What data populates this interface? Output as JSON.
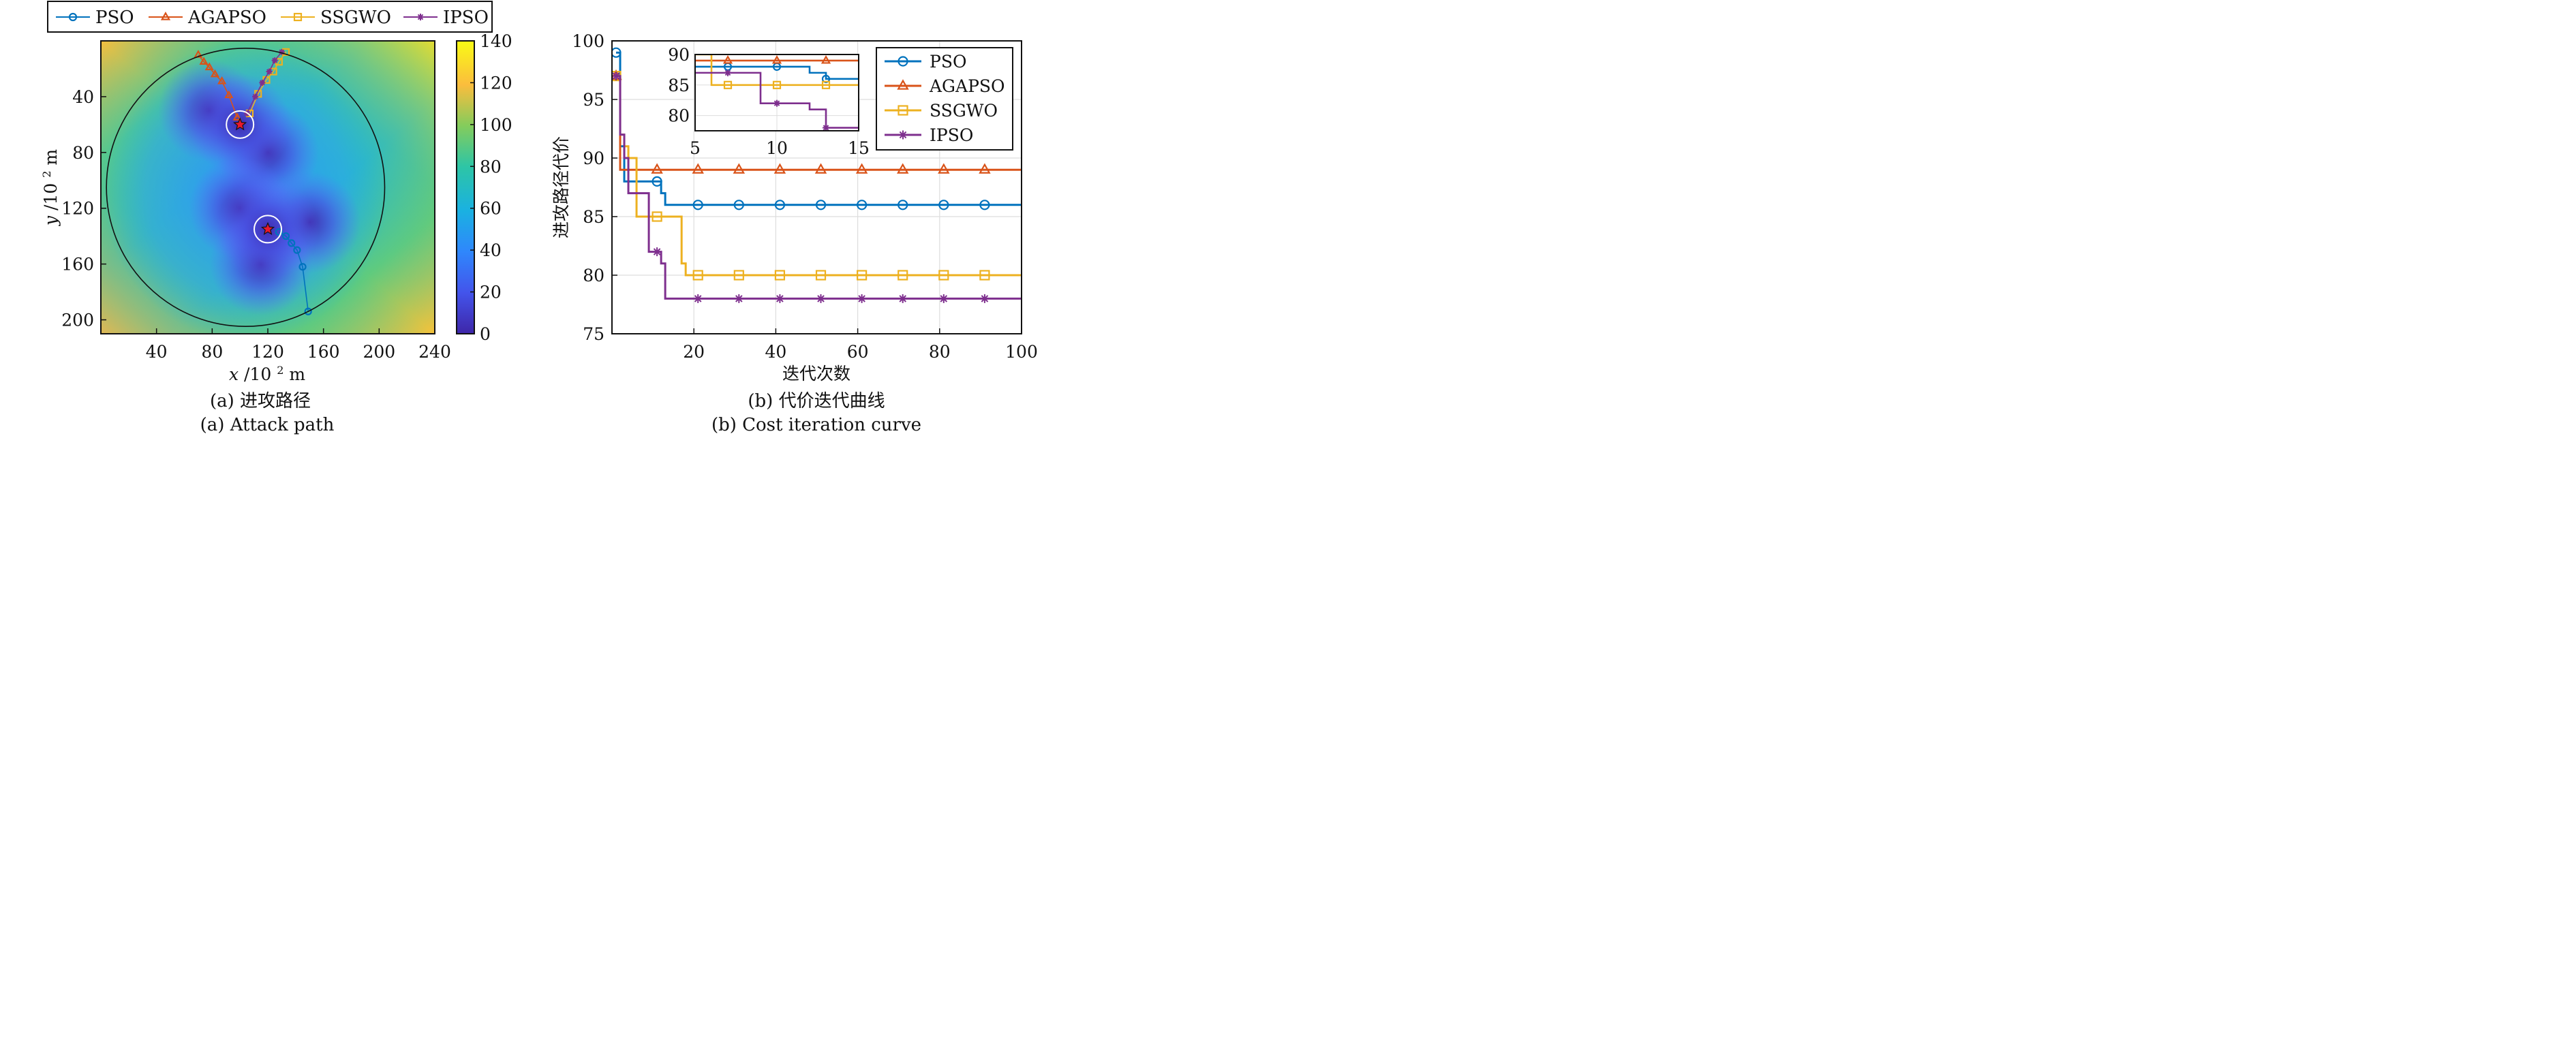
{
  "colors": {
    "PSO": "#0072BD",
    "AGAPSO": "#D95319",
    "SSGWO": "#EDB120",
    "IPSO": "#7E2F8E",
    "threat": "#e8192c"
  },
  "legend_top": [
    "PSO",
    "AGAPSO",
    "SSGWO",
    "IPSO"
  ],
  "captions": {
    "a_zh": "(a) 进攻路径",
    "a_en": "(a) Attack path",
    "b_zh": "(b) 代价迭代曲线",
    "b_en": "(b) Cost iteration curve"
  },
  "chart_data": [
    {
      "type": "heatmap",
      "xlabel_var": "x",
      "ylabel_var": "y",
      "unit_prefix": "/10",
      "unit_sup": "2",
      "unit": " m",
      "xlim": [
        0,
        240
      ],
      "ylim": [
        210,
        0
      ],
      "xticks": [
        40,
        80,
        120,
        160,
        200,
        240
      ],
      "yticks": [
        40,
        80,
        120,
        160,
        200
      ],
      "colorbar_ticks": [
        0,
        20,
        40,
        60,
        80,
        100,
        120,
        140
      ],
      "colorbar_range": [
        0,
        140
      ],
      "boundary_circle": {
        "cx": 104,
        "cy": 105,
        "r": 100
      },
      "targets": [
        {
          "x": 100,
          "y": 60
        },
        {
          "x": 120,
          "y": 135
        }
      ],
      "threat_centers": [
        [
          78,
          50
        ],
        [
          120,
          80
        ],
        [
          100,
          120
        ],
        [
          150,
          130
        ],
        [
          115,
          160
        ],
        [
          100,
          60
        ],
        [
          120,
          135
        ]
      ],
      "paths": [
        {
          "name": "PSO",
          "marker": "circle",
          "points": [
            [
              149,
              194
            ],
            [
              145,
              162
            ],
            [
              141,
              150
            ],
            [
              137,
              145
            ],
            [
              133,
              140
            ],
            [
              128,
              137
            ]
          ]
        },
        {
          "name": "AGAPSO",
          "marker": "triangle",
          "points": [
            [
              70,
              10
            ],
            [
              74,
              15
            ],
            [
              78,
              19
            ],
            [
              82,
              24
            ],
            [
              87,
              29
            ],
            [
              92,
              39
            ],
            [
              98,
              55
            ]
          ]
        },
        {
          "name": "SSGWO",
          "marker": "square",
          "points": [
            [
              133,
              8
            ],
            [
              128,
              15
            ],
            [
              124,
              22
            ],
            [
              119,
              28
            ],
            [
              113,
              38
            ],
            [
              107,
              52
            ]
          ]
        },
        {
          "name": "IPSO",
          "marker": "asterisk",
          "points": [
            [
              130,
              8
            ],
            [
              125,
              14
            ],
            [
              121,
              22
            ],
            [
              116,
              30
            ],
            [
              111,
              40
            ],
            [
              105,
              52
            ]
          ]
        }
      ]
    },
    {
      "type": "line",
      "xlabel": "迭代次数",
      "ylabel": "进攻路径代价",
      "xlim": [
        0,
        100
      ],
      "ylim": [
        75,
        100
      ],
      "xticks": [
        20,
        40,
        60,
        80,
        100
      ],
      "yticks": [
        75,
        80,
        85,
        90,
        95,
        100
      ],
      "grid": true,
      "legend": "top-right",
      "series": [
        {
          "name": "PSO",
          "marker": "circle",
          "x": [
            1,
            2,
            3,
            11,
            12,
            13,
            100
          ],
          "y": [
            99,
            91,
            88,
            88,
            87,
            86,
            86
          ]
        },
        {
          "name": "AGAPSO",
          "marker": "triangle",
          "x": [
            1,
            2,
            100
          ],
          "y": [
            97,
            89,
            89
          ]
        },
        {
          "name": "SSGWO",
          "marker": "square",
          "x": [
            1,
            2,
            3,
            4,
            5,
            6,
            10,
            11,
            16,
            17,
            18,
            100
          ],
          "y": [
            97,
            92,
            91,
            90,
            90,
            85,
            85,
            85,
            85,
            81,
            80,
            80
          ]
        },
        {
          "name": "IPSO",
          "marker": "asterisk",
          "x": [
            1,
            2,
            3,
            4,
            8,
            9,
            11,
            12,
            13,
            100
          ],
          "y": [
            97,
            92,
            90,
            87,
            87,
            82,
            82,
            81,
            78,
            78
          ]
        }
      ],
      "inset": {
        "xlim": [
          5,
          15
        ],
        "ylim": [
          77.5,
          90
        ],
        "xticks": [
          5,
          10,
          15
        ],
        "yticks": [
          80,
          85,
          90
        ],
        "marker_x": [
          7,
          10,
          13
        ]
      }
    }
  ]
}
